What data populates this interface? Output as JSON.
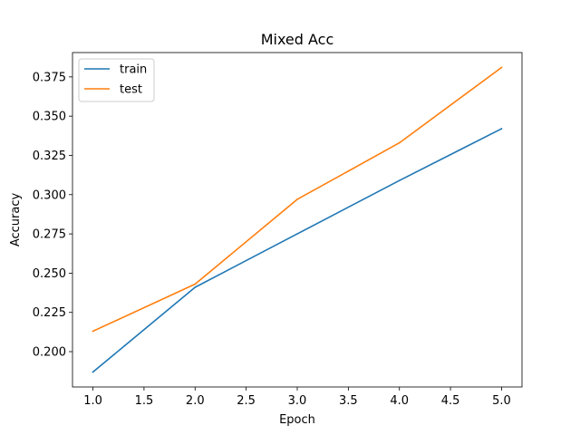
{
  "chart_data": {
    "type": "line",
    "title": "Mixed Acc",
    "xlabel": "Epoch",
    "ylabel": "Accuracy",
    "x": [
      1.0,
      2.0,
      3.0,
      4.0,
      5.0
    ],
    "series": [
      {
        "name": "train",
        "color": "#1f77b4",
        "values": [
          0.187,
          0.241,
          0.275,
          0.309,
          0.342
        ]
      },
      {
        "name": "test",
        "color": "#ff7f0e",
        "values": [
          0.213,
          0.243,
          0.297,
          0.333,
          0.381
        ]
      }
    ],
    "xlim": [
      0.8,
      5.2
    ],
    "ylim": [
      0.1775,
      0.3905
    ],
    "xticks": [
      1.0,
      1.5,
      2.0,
      2.5,
      3.0,
      3.5,
      4.0,
      4.5,
      5.0
    ],
    "xtick_labels": [
      "1.0",
      "1.5",
      "2.0",
      "2.5",
      "3.0",
      "3.5",
      "4.0",
      "4.5",
      "5.0"
    ],
    "yticks": [
      0.2,
      0.225,
      0.25,
      0.275,
      0.3,
      0.325,
      0.35,
      0.375
    ],
    "ytick_labels": [
      "0.200",
      "0.225",
      "0.250",
      "0.275",
      "0.300",
      "0.325",
      "0.350",
      "0.375"
    ],
    "grid": false,
    "legend_position": "top-left"
  }
}
